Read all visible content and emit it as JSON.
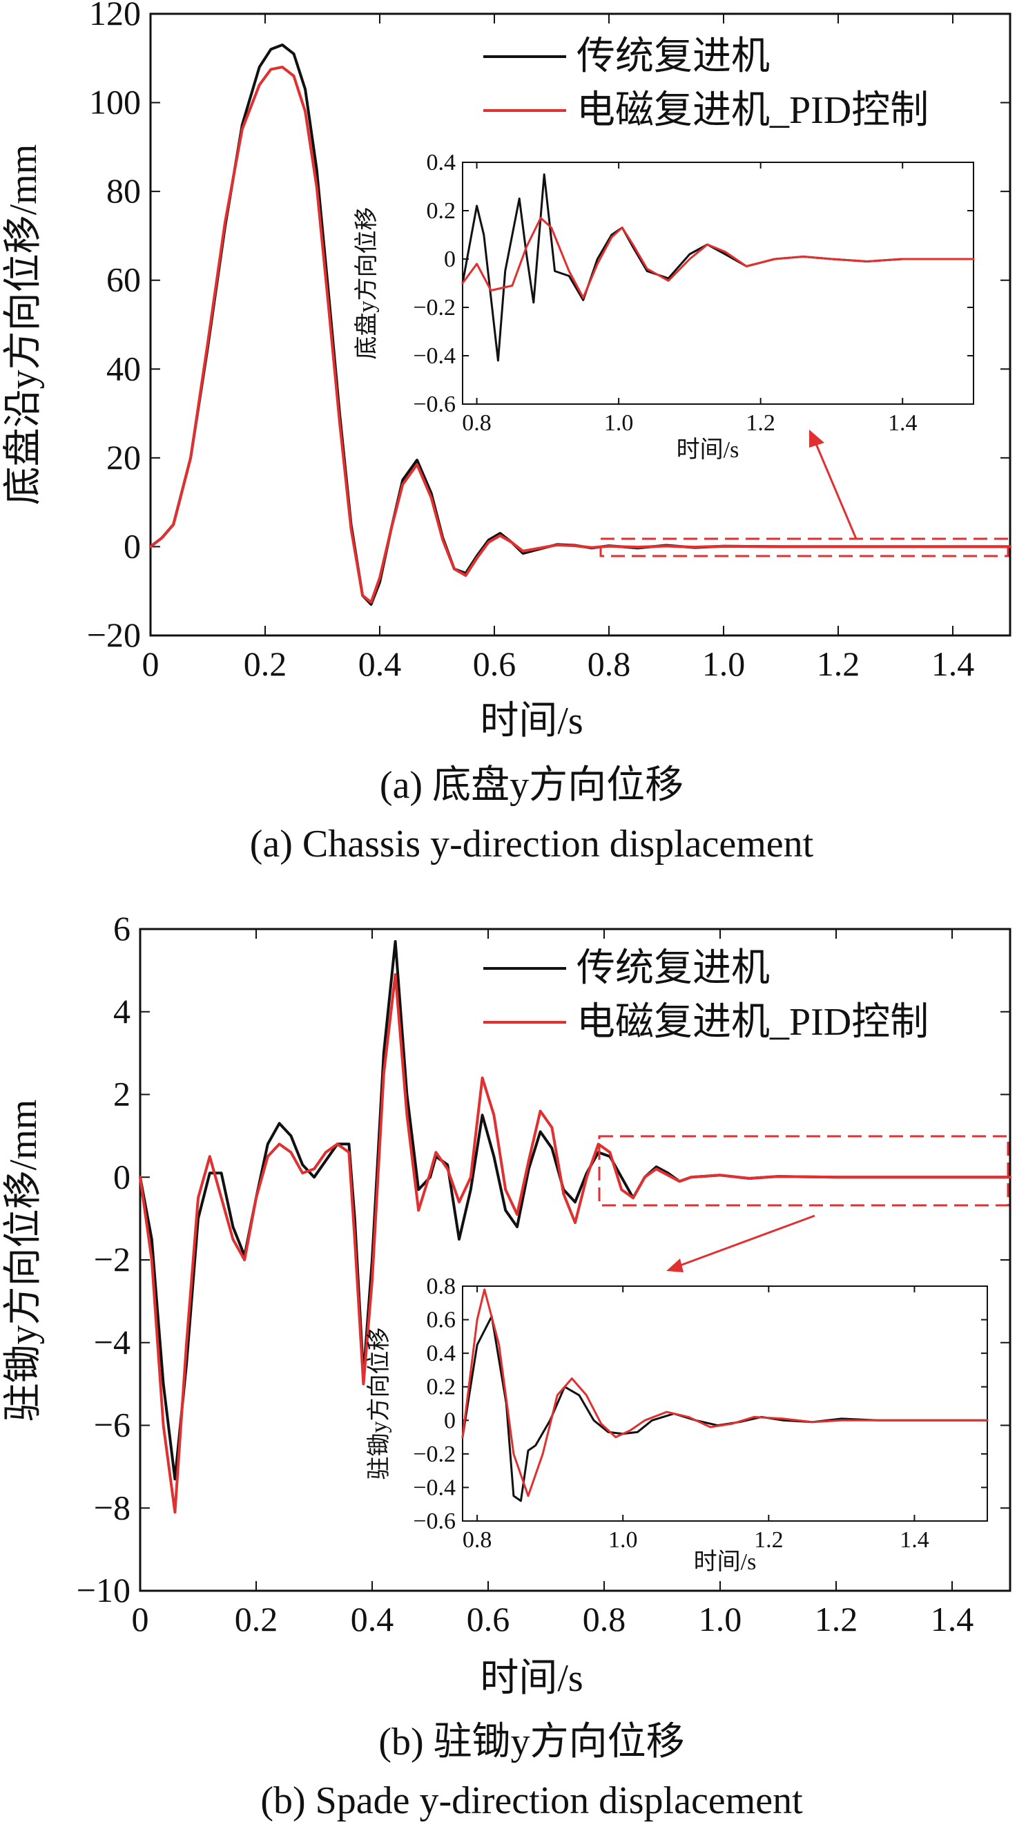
{
  "series_colors": [
    "#111111",
    "#e03030"
  ],
  "chart_data": [
    {
      "type": "line",
      "xlabel": "时间/s",
      "ylabel": "底盘沿y方向位移/mm",
      "xlim": [
        0,
        1.5
      ],
      "ylim": [
        -20,
        120
      ],
      "xticks": [
        "0",
        "0.2",
        "0.4",
        "0.6",
        "0.8",
        "1.0",
        "1.2",
        "1.4"
      ],
      "yticks": [
        "−20",
        "0",
        "20",
        "40",
        "60",
        "80",
        "100",
        "120"
      ],
      "caption_cn": "(a) 底盘y方向位移",
      "caption_en": "(a) Chassis y-direction displacement",
      "legend_position": "top-right",
      "series": [
        {
          "name": "传统复进机",
          "x": [
            0,
            0.02,
            0.04,
            0.07,
            0.1,
            0.13,
            0.16,
            0.19,
            0.21,
            0.23,
            0.25,
            0.27,
            0.29,
            0.31,
            0.33,
            0.35,
            0.37,
            0.385,
            0.4,
            0.42,
            0.44,
            0.465,
            0.49,
            0.51,
            0.53,
            0.55,
            0.57,
            0.59,
            0.61,
            0.63,
            0.65,
            0.68,
            0.71,
            0.74,
            0.77,
            0.8,
            0.85,
            0.9,
            0.95,
            1.0,
            1.1,
            1.2,
            1.3,
            1.5
          ],
          "y": [
            0,
            2,
            5,
            20,
            45,
            72,
            95,
            108,
            112,
            113,
            111,
            103,
            85,
            58,
            30,
            5,
            -11,
            -13,
            -8,
            4,
            15,
            19.5,
            12,
            2,
            -5,
            -6,
            -2,
            1.5,
            3,
            1,
            -1.5,
            -0.5,
            0.5,
            0.3,
            -0.3,
            0.2,
            -0.3,
            0.3,
            -0.2,
            0.1,
            0,
            0,
            0,
            0
          ]
        },
        {
          "name": "电磁复进机_PID控制",
          "x": [
            0,
            0.02,
            0.04,
            0.07,
            0.1,
            0.13,
            0.16,
            0.19,
            0.21,
            0.23,
            0.25,
            0.27,
            0.29,
            0.31,
            0.33,
            0.35,
            0.37,
            0.385,
            0.4,
            0.42,
            0.44,
            0.465,
            0.49,
            0.51,
            0.53,
            0.55,
            0.57,
            0.59,
            0.61,
            0.63,
            0.65,
            0.68,
            0.71,
            0.74,
            0.77,
            0.8,
            0.85,
            0.9,
            0.95,
            1.0,
            1.1,
            1.2,
            1.3,
            1.5
          ],
          "y": [
            0,
            2,
            5,
            20,
            46,
            73,
            94,
            104,
            107.5,
            108,
            106,
            98,
            81,
            55,
            28,
            4,
            -11,
            -12.5,
            -7,
            4,
            14,
            18.5,
            11,
            1.5,
            -5,
            -6.5,
            -2.5,
            1,
            2.5,
            1,
            -1,
            -0.3,
            0.4,
            0.2,
            -0.2,
            0.1,
            -0.1,
            0.15,
            -0.1,
            0.1,
            0,
            0,
            0,
            0
          ]
        }
      ],
      "inset": {
        "xlabel": "时间/s",
        "ylabel": "底盘y方向位移",
        "xlim": [
          0.78,
          1.5
        ],
        "ylim": [
          -0.6,
          0.4
        ],
        "xticks": [
          "0.8",
          "1.0",
          "1.2",
          "1.4"
        ],
        "yticks": [
          "−0.6",
          "−0.4",
          "−0.2",
          "0",
          "0.2",
          "0.4"
        ],
        "series": [
          {
            "name": "传统复进机",
            "x": [
              0.78,
              0.8,
              0.81,
              0.83,
              0.84,
              0.86,
              0.87,
              0.88,
              0.895,
              0.91,
              0.93,
              0.95,
              0.97,
              0.99,
              1.005,
              1.02,
              1.04,
              1.07,
              1.1,
              1.125,
              1.15,
              1.18,
              1.22,
              1.26,
              1.3,
              1.35,
              1.4,
              1.45,
              1.5
            ],
            "y": [
              -0.1,
              0.22,
              0.1,
              -0.42,
              -0.05,
              0.25,
              0.02,
              -0.18,
              0.35,
              -0.05,
              -0.07,
              -0.17,
              0.0,
              0.1,
              0.13,
              0.05,
              -0.05,
              -0.08,
              0.02,
              0.06,
              0.02,
              -0.03,
              0.0,
              0.01,
              0.0,
              -0.01,
              0.0,
              0.0,
              0.0
            ]
          },
          {
            "name": "电磁复进机_PID控制",
            "x": [
              0.78,
              0.8,
              0.82,
              0.85,
              0.87,
              0.89,
              0.905,
              0.93,
              0.95,
              0.97,
              0.99,
              1.005,
              1.02,
              1.04,
              1.07,
              1.1,
              1.125,
              1.15,
              1.18,
              1.22,
              1.26,
              1.3,
              1.35,
              1.4,
              1.45,
              1.5
            ],
            "y": [
              -0.1,
              -0.02,
              -0.13,
              -0.11,
              0.05,
              0.17,
              0.13,
              -0.05,
              -0.16,
              -0.02,
              0.09,
              0.13,
              0.06,
              -0.04,
              -0.09,
              0.0,
              0.06,
              0.03,
              -0.03,
              0.0,
              0.01,
              0.0,
              -0.01,
              0.0,
              0.0,
              0.0
            ]
          }
        ]
      }
    },
    {
      "type": "line",
      "xlabel": "时间/s",
      "ylabel": "驻锄y方向位移/mm",
      "xlim": [
        0,
        1.5
      ],
      "ylim": [
        -10,
        6
      ],
      "xticks": [
        "0",
        "0.2",
        "0.4",
        "0.6",
        "0.8",
        "1.0",
        "1.2",
        "1.4"
      ],
      "yticks": [
        "−10",
        "−8",
        "−6",
        "−4",
        "−2",
        "0",
        "2",
        "4",
        "6"
      ],
      "caption_cn": "(b) 驻锄y方向位移",
      "caption_en": "(b) Spade y-direction displacement",
      "legend_position": "top-right",
      "series": [
        {
          "name": "传统复进机",
          "x": [
            0,
            0.02,
            0.04,
            0.06,
            0.08,
            0.1,
            0.12,
            0.14,
            0.16,
            0.18,
            0.2,
            0.22,
            0.24,
            0.26,
            0.28,
            0.3,
            0.32,
            0.34,
            0.36,
            0.37,
            0.385,
            0.4,
            0.42,
            0.44,
            0.46,
            0.48,
            0.5,
            0.51,
            0.53,
            0.55,
            0.57,
            0.59,
            0.61,
            0.63,
            0.65,
            0.67,
            0.69,
            0.71,
            0.73,
            0.75,
            0.77,
            0.79,
            0.81,
            0.83,
            0.85,
            0.87,
            0.89,
            0.91,
            0.93,
            0.95,
            1.0,
            1.05,
            1.1,
            1.2,
            1.3,
            1.5
          ],
          "y": [
            0,
            -1.5,
            -5,
            -7.3,
            -4.5,
            -1,
            0.1,
            0.1,
            -1.2,
            -1.9,
            -0.5,
            0.8,
            1.3,
            1.0,
            0.3,
            0.0,
            0.4,
            0.8,
            0.8,
            -1,
            -4.8,
            -2,
            3,
            5.7,
            2,
            -0.3,
            0.0,
            0.5,
            0.3,
            -1.5,
            -0.3,
            1.5,
            0.5,
            -0.8,
            -1.2,
            0.2,
            1.1,
            0.7,
            -0.3,
            -0.6,
            0.1,
            0.6,
            0.5,
            0.0,
            -0.5,
            0.0,
            0.25,
            0.1,
            -0.1,
            0.0,
            0.05,
            -0.03,
            0.02,
            0.0,
            0.0,
            0.0
          ]
        },
        {
          "name": "电磁复进机_PID控制",
          "x": [
            0,
            0.02,
            0.04,
            0.06,
            0.08,
            0.1,
            0.12,
            0.14,
            0.16,
            0.18,
            0.2,
            0.22,
            0.24,
            0.26,
            0.28,
            0.3,
            0.32,
            0.34,
            0.36,
            0.37,
            0.385,
            0.4,
            0.42,
            0.44,
            0.46,
            0.48,
            0.5,
            0.51,
            0.53,
            0.55,
            0.57,
            0.59,
            0.61,
            0.63,
            0.65,
            0.67,
            0.69,
            0.71,
            0.73,
            0.75,
            0.77,
            0.79,
            0.81,
            0.83,
            0.85,
            0.87,
            0.89,
            0.91,
            0.93,
            0.95,
            1.0,
            1.05,
            1.1,
            1.2,
            1.3,
            1.5
          ],
          "y": [
            0,
            -2,
            -6,
            -8.1,
            -4,
            -0.5,
            0.5,
            -0.5,
            -1.5,
            -2.0,
            -0.5,
            0.5,
            0.8,
            0.6,
            0.1,
            0.2,
            0.6,
            0.8,
            0.6,
            -1.5,
            -5.0,
            -2.5,
            2.5,
            4.9,
            1.5,
            -0.8,
            0.1,
            0.6,
            0.2,
            -0.6,
            0.0,
            2.4,
            1.5,
            -0.3,
            -0.9,
            0.4,
            1.6,
            1.2,
            -0.4,
            -1.1,
            0.0,
            0.8,
            0.6,
            -0.3,
            -0.5,
            0.0,
            0.2,
            0.05,
            -0.1,
            0.0,
            0.05,
            -0.03,
            0.02,
            0.0,
            0.0,
            0.0
          ]
        }
      ],
      "inset": {
        "xlabel": "时间/s",
        "ylabel": "驻锄y方向位移",
        "xlim": [
          0.78,
          1.5
        ],
        "ylim": [
          -0.6,
          0.8
        ],
        "xticks": [
          "0.8",
          "1.0",
          "1.2",
          "1.4"
        ],
        "yticks": [
          "−0.6",
          "−0.4",
          "−0.2",
          "0",
          "0.2",
          "0.4",
          "0.6",
          "0.8"
        ],
        "series": [
          {
            "name": "传统复进机",
            "x": [
              0.78,
              0.8,
              0.82,
              0.84,
              0.85,
              0.86,
              0.87,
              0.88,
              0.9,
              0.92,
              0.94,
              0.96,
              0.98,
              1.0,
              1.02,
              1.04,
              1.07,
              1.1,
              1.13,
              1.16,
              1.19,
              1.22,
              1.26,
              1.3,
              1.35,
              1.4,
              1.45,
              1.5
            ],
            "y": [
              -0.1,
              0.45,
              0.62,
              0.1,
              -0.45,
              -0.48,
              -0.18,
              -0.15,
              0.0,
              0.2,
              0.15,
              0.0,
              -0.07,
              -0.08,
              -0.07,
              0.0,
              0.04,
              0.0,
              -0.03,
              -0.01,
              0.02,
              0.0,
              -0.01,
              0.01,
              0.0,
              0.0,
              0.0,
              0.0
            ]
          },
          {
            "name": "电磁复进机_PID控制",
            "x": [
              0.78,
              0.8,
              0.81,
              0.83,
              0.85,
              0.87,
              0.89,
              0.91,
              0.93,
              0.95,
              0.97,
              0.99,
              1.01,
              1.03,
              1.06,
              1.09,
              1.12,
              1.15,
              1.18,
              1.22,
              1.26,
              1.3,
              1.35,
              1.4,
              1.45,
              1.5
            ],
            "y": [
              -0.1,
              0.6,
              0.78,
              0.45,
              -0.2,
              -0.45,
              -0.2,
              0.15,
              0.25,
              0.15,
              -0.02,
              -0.1,
              -0.06,
              0.0,
              0.05,
              0.02,
              -0.04,
              -0.02,
              0.02,
              0.01,
              -0.01,
              0.0,
              0.0,
              0.0,
              0.0,
              0.0
            ]
          }
        ]
      }
    }
  ]
}
